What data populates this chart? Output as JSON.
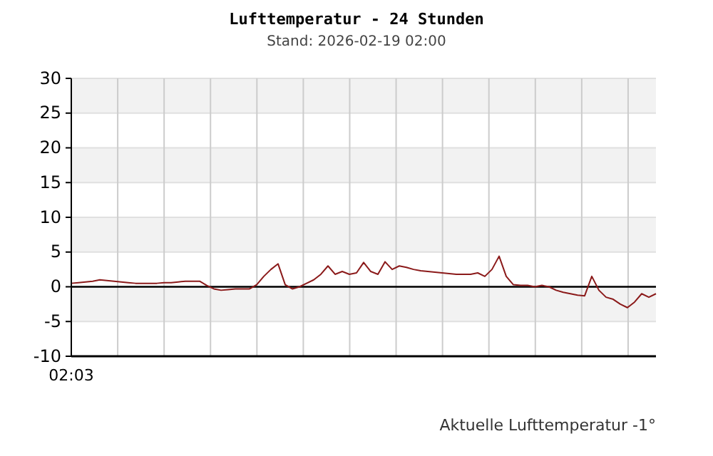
{
  "chart_data": {
    "type": "line",
    "title": "Lufttemperatur - 24 Stunden",
    "subtitle": "Stand: 2026-02-19 02:00",
    "annotations": [
      "02:03",
      "Aktuelle Lufttemperatur -1°"
    ],
    "categories": [
      null,
      null,
      null,
      null,
      null,
      null,
      null,
      null,
      null,
      null,
      null,
      null,
      null,
      null,
      null,
      null,
      null,
      null,
      null,
      null,
      null,
      null,
      null,
      null,
      null,
      null,
      null,
      null,
      null,
      null,
      null,
      null,
      null,
      null,
      null,
      null,
      null,
      null,
      null,
      null,
      null,
      null,
      null,
      null,
      null,
      null,
      null,
      null,
      null,
      null,
      null,
      null,
      null,
      null,
      null,
      null,
      null,
      null,
      null,
      null,
      null,
      null,
      null,
      null,
      null,
      null,
      null,
      null,
      null,
      null,
      null,
      null,
      null,
      null,
      null,
      null,
      null,
      null,
      null,
      null,
      null,
      null,
      null
    ],
    "series": [
      {
        "color": "#8b1a1a",
        "values": [
          0.5,
          0.6,
          0.7,
          0.8,
          1.0,
          0.9,
          0.8,
          0.7,
          0.6,
          0.5,
          0.5,
          0.5,
          0.5,
          0.6,
          0.6,
          0.7,
          0.8,
          0.8,
          0.8,
          0.2,
          -0.3,
          -0.5,
          -0.4,
          -0.3,
          -0.3,
          -0.3,
          0.3,
          1.5,
          2.5,
          3.3,
          0.3,
          -0.3,
          0.0,
          0.5,
          1.0,
          1.8,
          3.0,
          1.8,
          2.2,
          1.8,
          2.0,
          3.5,
          2.2,
          1.8,
          3.6,
          2.5,
          3.0,
          2.8,
          2.5,
          2.3,
          2.2,
          2.1,
          2.0,
          1.9,
          1.8,
          1.8,
          1.8,
          2.0,
          1.5,
          2.5,
          4.4,
          1.5,
          0.3,
          0.2,
          0.2,
          0.0,
          0.2,
          0.0,
          -0.5,
          -0.8,
          -1.0,
          -1.2,
          -1.3,
          1.5,
          -0.5,
          -1.5,
          -1.8,
          -2.5,
          -3.0,
          -2.2,
          -1.0,
          -1.5,
          -1.0
        ]
      }
    ],
    "ylim": [
      -10,
      30
    ],
    "yticks": [
      -10,
      -5,
      0,
      5,
      10,
      15,
      20,
      25,
      30
    ],
    "ref_lines": [
      {
        "axis": "y",
        "value": 0,
        "color": "#000000"
      }
    ],
    "grid": true,
    "line_style": "solid"
  }
}
